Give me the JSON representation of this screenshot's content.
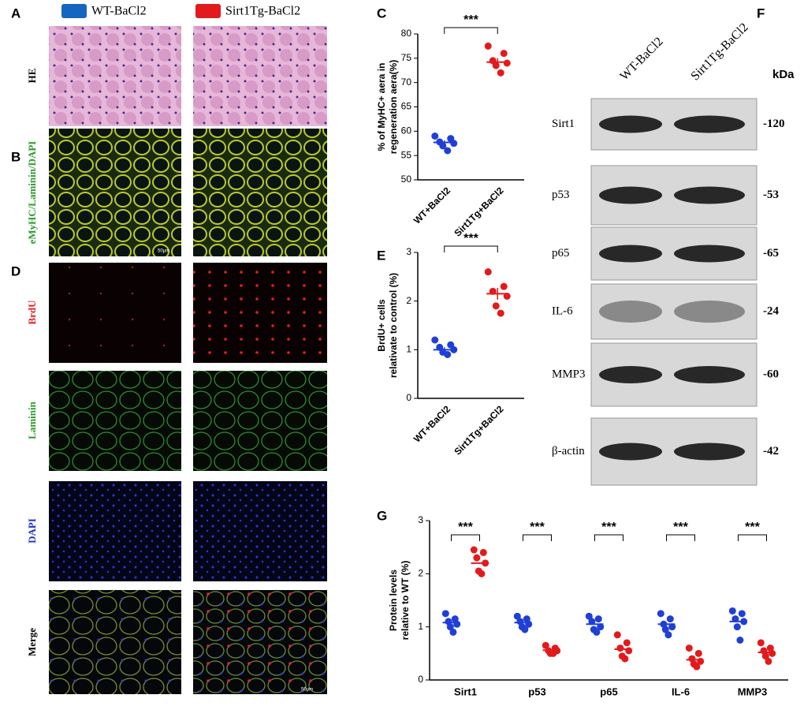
{
  "figure": {
    "legend": [
      {
        "text": "WT-BaCl2",
        "color": "#1565c0"
      },
      {
        "text": "Sirt1Tg-BaCl2",
        "color": "#e31a1c"
      }
    ],
    "panel_letters": [
      "A",
      "B",
      "C",
      "D",
      "E",
      "F",
      "G"
    ],
    "row_labels": [
      "HE",
      "eMyHC/Laminin/DAPI",
      "BrdU",
      "Laminin",
      "DAPI",
      "Merge"
    ],
    "scale_bar": "50μm",
    "blot": {
      "columns": [
        "WT-BaCl2",
        "Sirt1Tg-BaCl2"
      ],
      "unit": "kDa",
      "rows": [
        {
          "label": "Sirt1",
          "kda": "-120"
        },
        {
          "label": "p53",
          "kda": "-53"
        },
        {
          "label": "p65",
          "kda": "-65"
        },
        {
          "label": "IL-6",
          "kda": "-24"
        },
        {
          "label": "MMP3",
          "kda": "-60"
        },
        {
          "label": "β-actin",
          "kda": "-42"
        }
      ]
    }
  },
  "chart_data": [
    {
      "type": "dot",
      "panel": "C",
      "ylabel": [
        "% of MyHC+ aera in",
        "regeneration aera(%)"
      ],
      "categories": [
        "WT+BaCl2",
        "Sirt1Tg+BaCl2"
      ],
      "significance": "***",
      "groups": [
        {
          "color": "#1f3fd6",
          "values": [
            59,
            58.5,
            57.8,
            57.5,
            57,
            56
          ],
          "mean": 57.7,
          "sem": 0.4
        },
        {
          "color": "#e31a1c",
          "values": [
            77.5,
            76,
            74.5,
            74,
            73.5,
            72
          ],
          "mean": 74.2,
          "sem": 0.8
        }
      ],
      "ylim": [
        50,
        80
      ],
      "yticks": [
        50,
        55,
        60,
        65,
        70,
        75,
        80
      ]
    },
    {
      "type": "dot",
      "panel": "E",
      "ylabel": [
        "BrdU+ cells",
        "relativate to control (%)"
      ],
      "categories": [
        "WT+BaCl2",
        "Sirt1Tg+BaCl2"
      ],
      "significance": "***",
      "groups": [
        {
          "color": "#1f3fd6",
          "values": [
            1.2,
            1.1,
            1.05,
            1.0,
            0.95,
            0.9
          ],
          "mean": 1.0,
          "sem": 0.05
        },
        {
          "color": "#e31a1c",
          "values": [
            2.6,
            2.3,
            2.2,
            2.1,
            1.9,
            1.75
          ],
          "mean": 2.15,
          "sem": 0.12
        }
      ],
      "ylim": [
        0,
        3
      ],
      "yticks": [
        0,
        1,
        2,
        3
      ]
    },
    {
      "type": "grouped-dot",
      "panel": "G",
      "ylabel": [
        "Protein levels",
        "relative to WT (%)"
      ],
      "categories": [
        "Sirt1",
        "p53",
        "p65",
        "IL-6",
        "MMP3"
      ],
      "significance": [
        "***",
        "***",
        "***",
        "***",
        "***"
      ],
      "series": [
        {
          "color": "#1f3fd6",
          "values": [
            [
              1.25,
              1.15,
              1.1,
              1.05,
              1.0,
              0.9
            ],
            [
              1.2,
              1.15,
              1.1,
              1.05,
              1.0,
              0.95
            ],
            [
              1.2,
              1.15,
              1.1,
              1.0,
              0.95,
              0.9
            ],
            [
              1.25,
              1.15,
              1.05,
              1.0,
              0.95,
              0.85
            ],
            [
              1.3,
              1.25,
              1.15,
              1.1,
              1.0,
              0.75
            ]
          ],
          "means": [
            1.08,
            1.08,
            1.05,
            1.05,
            1.1
          ]
        },
        {
          "color": "#e31a1c",
          "values": [
            [
              2.45,
              2.4,
              2.3,
              2.2,
              2.05,
              2.0
            ],
            [
              0.65,
              0.6,
              0.55,
              0.55,
              0.5,
              0.5
            ],
            [
              0.85,
              0.7,
              0.6,
              0.55,
              0.45,
              0.4
            ],
            [
              0.6,
              0.5,
              0.4,
              0.35,
              0.3,
              0.25
            ],
            [
              0.7,
              0.6,
              0.55,
              0.5,
              0.45,
              0.35
            ]
          ],
          "means": [
            2.2,
            0.56,
            0.58,
            0.38,
            0.52
          ]
        }
      ],
      "ylim": [
        0,
        3
      ],
      "yticks": [
        0,
        1,
        2,
        3
      ]
    }
  ]
}
